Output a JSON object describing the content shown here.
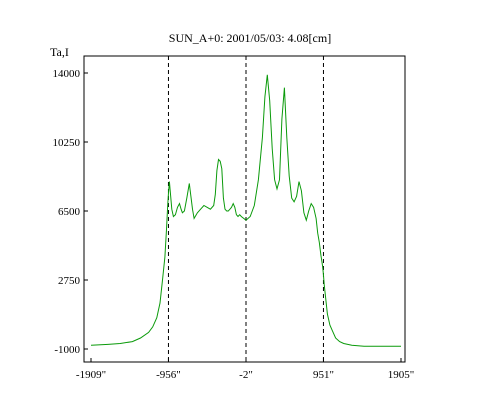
{
  "chart_data": {
    "type": "line",
    "title": "SUN_A+0: 2001/05/03: 4.08[cm]",
    "ylabel": "Ta,I",
    "xlabel": "",
    "xlim": [
      -1909,
      1905
    ],
    "ylim": [
      -1000,
      14000
    ],
    "x_ticks": [
      {
        "value": -1909,
        "label": "-1909\""
      },
      {
        "value": -956,
        "label": "-956\""
      },
      {
        "value": -2,
        "label": "-2\""
      },
      {
        "value": 951,
        "label": "951\""
      },
      {
        "value": 1905,
        "label": "1905\""
      }
    ],
    "y_ticks": [
      {
        "value": 14000,
        "label": "14000"
      },
      {
        "value": 10250,
        "label": "10250"
      },
      {
        "value": 6500,
        "label": "6500"
      },
      {
        "value": 2750,
        "label": "2750"
      },
      {
        "value": -1000,
        "label": "-1000"
      }
    ],
    "vlines": [
      -956,
      -2,
      951
    ],
    "grid": false,
    "legend": "none",
    "line_color": "#0a9a0a",
    "series": [
      {
        "x": [
          -1909,
          -1700,
          -1550,
          -1400,
          -1300,
          -1200,
          -1150,
          -1100,
          -1060,
          -1030,
          -1000,
          -980,
          -965,
          -956,
          -945,
          -935,
          -915,
          -895,
          -870,
          -845,
          -820,
          -800,
          -785,
          -760,
          -730,
          -700,
          -680,
          -660,
          -640,
          -600,
          -560,
          -520,
          -480,
          -440,
          -400,
          -380,
          -360,
          -340,
          -320,
          -300,
          -280,
          -260,
          -240,
          -220,
          -200,
          -180,
          -160,
          -140,
          -120,
          -100,
          -80,
          -60,
          -30,
          -2,
          50,
          100,
          150,
          200,
          230,
          260,
          290,
          320,
          350,
          380,
          410,
          440,
          470,
          500,
          530,
          560,
          590,
          620,
          650,
          680,
          710,
          740,
          770,
          800,
          830,
          860,
          880,
          900,
          920,
          940,
          951,
          960,
          980,
          1000,
          1030,
          1060,
          1100,
          1150,
          1200,
          1300,
          1450,
          1600,
          1750,
          1905
        ],
        "y": [
          -800,
          -750,
          -700,
          -600,
          -400,
          -100,
          200,
          700,
          1500,
          2700,
          4000,
          5500,
          6800,
          7500,
          8100,
          7600,
          6600,
          6200,
          6300,
          6700,
          6900,
          6600,
          6400,
          6500,
          7200,
          8000,
          7300,
          6600,
          6100,
          6400,
          6600,
          6800,
          6700,
          6600,
          6800,
          7400,
          8700,
          9300,
          9200,
          8800,
          7200,
          6600,
          6500,
          6500,
          6600,
          6700,
          6900,
          6700,
          6300,
          6200,
          6300,
          6200,
          6100,
          6000,
          6200,
          6800,
          8200,
          10500,
          12700,
          13900,
          12500,
          9900,
          8200,
          7700,
          8200,
          11500,
          13200,
          10500,
          8400,
          7200,
          7000,
          7300,
          8100,
          7600,
          6400,
          6000,
          6500,
          6900,
          6700,
          6100,
          5300,
          4800,
          4100,
          3500,
          3000,
          2500,
          1700,
          900,
          300,
          0,
          -400,
          -600,
          -700,
          -800,
          -850,
          -850,
          -850,
          -850
        ]
      }
    ]
  }
}
